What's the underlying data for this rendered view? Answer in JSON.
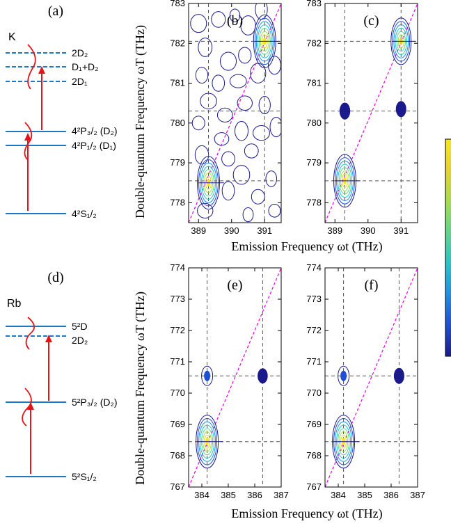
{
  "colors": {
    "level": "#1f77c8",
    "arrow": "#e4141b",
    "diagonal": "#e600e6",
    "guide": "#555555",
    "contour_outer": "#1a1a8c",
    "frame": "#000000"
  },
  "colorbar_colors": [
    "#1a1a8c",
    "#1f4fd6",
    "#1e8fe6",
    "#26c6c6",
    "#5fd68a",
    "#a6dc4a",
    "#e6d22a",
    "#f5e61e"
  ],
  "shared": {
    "ylabel": "Double-quantum Frequency ωT (THz)",
    "xlabel_top": "Emission Frequency ωt (THz)",
    "xlabel_bottom": "Emission Frequency ωt (THz)"
  },
  "diagrams": [
    {
      "panel": "(a)",
      "atom": "K",
      "levels": [
        {
          "label": "2D₂",
          "style": "dashed"
        },
        {
          "label": "D₁+D₂",
          "style": "dashed"
        },
        {
          "label": "2D₁",
          "style": "dashed"
        },
        {
          "label": "4²P₃/₂ (D₂)",
          "style": "solid"
        },
        {
          "label": "4²P₁/₂ (D₁)",
          "style": "solid"
        },
        {
          "label": "4²S₁/₂",
          "style": "solid"
        }
      ]
    },
    {
      "panel": "(d)",
      "atom": "Rb",
      "levels": [
        {
          "label": "5²D",
          "style": "solid"
        },
        {
          "label": "2D₂",
          "style": "dashed"
        },
        {
          "label": "5²P₃/₂ (D₂)",
          "style": "solid"
        },
        {
          "label": "5²S₁/₂",
          "style": "solid"
        }
      ]
    }
  ],
  "chart_data": [
    {
      "panel": "(b)",
      "type": "heatmap",
      "xlim": [
        388.7,
        391.5
      ],
      "ylim": [
        777.5,
        783
      ],
      "xticks": [
        389,
        390,
        391
      ],
      "yticks": [
        778,
        779,
        780,
        781,
        782,
        783
      ],
      "xlines": [
        389.3,
        391
      ],
      "ylines": [
        778.55,
        780.3,
        782.05
      ],
      "diagonal": [
        [
          388.7,
          777.5
        ],
        [
          391.5,
          783
        ]
      ],
      "peaks": [
        {
          "x": 389.3,
          "y": 778.5,
          "intensity": 1.0
        },
        {
          "x": 391.0,
          "y": 782.05,
          "intensity": 1.0
        }
      ],
      "noise_islands": [
        {
          "x": 389.0,
          "y": 782.5
        },
        {
          "x": 389.6,
          "y": 782.6
        },
        {
          "x": 390.1,
          "y": 782.7
        },
        {
          "x": 390.5,
          "y": 782.45
        },
        {
          "x": 390.9,
          "y": 782.85
        },
        {
          "x": 389.2,
          "y": 781.9
        },
        {
          "x": 389.9,
          "y": 781.55
        },
        {
          "x": 390.4,
          "y": 781.7
        },
        {
          "x": 389.1,
          "y": 781.2
        },
        {
          "x": 389.6,
          "y": 781.0
        },
        {
          "x": 390.2,
          "y": 781.05
        },
        {
          "x": 390.8,
          "y": 781.25
        },
        {
          "x": 391.3,
          "y": 781.45
        },
        {
          "x": 389.3,
          "y": 780.55
        },
        {
          "x": 389.8,
          "y": 780.2
        },
        {
          "x": 390.4,
          "y": 780.5
        },
        {
          "x": 391.0,
          "y": 780.45
        },
        {
          "x": 389.0,
          "y": 780.0
        },
        {
          "x": 389.7,
          "y": 779.6
        },
        {
          "x": 390.3,
          "y": 779.8
        },
        {
          "x": 390.9,
          "y": 779.75
        },
        {
          "x": 391.35,
          "y": 779.9
        },
        {
          "x": 389.1,
          "y": 779.2
        },
        {
          "x": 389.9,
          "y": 779.1
        },
        {
          "x": 390.6,
          "y": 779.3
        },
        {
          "x": 390.3,
          "y": 778.7
        },
        {
          "x": 391.2,
          "y": 778.6
        },
        {
          "x": 389.9,
          "y": 778.3
        },
        {
          "x": 390.8,
          "y": 778.15
        },
        {
          "x": 389.2,
          "y": 777.8
        },
        {
          "x": 390.5,
          "y": 777.7
        },
        {
          "x": 391.3,
          "y": 777.8
        }
      ]
    },
    {
      "panel": "(c)",
      "type": "heatmap",
      "xlim": [
        388.7,
        391.5
      ],
      "ylim": [
        777.5,
        783
      ],
      "xticks": [
        389,
        390,
        391
      ],
      "yticks": [
        778,
        779,
        780,
        781,
        782,
        783
      ],
      "xlines": [
        389.3,
        391
      ],
      "ylines": [
        778.55,
        780.3,
        782.05
      ],
      "diagonal": [
        [
          388.7,
          777.5
        ],
        [
          391.5,
          783
        ]
      ],
      "peaks": [
        {
          "x": 389.3,
          "y": 778.55,
          "intensity": 1.0
        },
        {
          "x": 391.0,
          "y": 782.05,
          "intensity": 0.85
        },
        {
          "x": 389.3,
          "y": 780.3,
          "intensity": 0.12
        },
        {
          "x": 391.0,
          "y": 780.35,
          "intensity": 0.1
        }
      ]
    },
    {
      "panel": "(e)",
      "type": "heatmap",
      "xlim": [
        383.5,
        387
      ],
      "ylim": [
        767,
        774
      ],
      "xticks": [
        384,
        385,
        386,
        387
      ],
      "yticks": [
        767,
        768,
        769,
        770,
        771,
        772,
        773,
        774
      ],
      "xlines": [
        384.2,
        386.3
      ],
      "ylines": [
        768.45,
        770.55
      ],
      "diagonal": [
        [
          383.5,
          767
        ],
        [
          387,
          774
        ]
      ],
      "peaks": [
        {
          "x": 384.2,
          "y": 768.45,
          "intensity": 1.0
        },
        {
          "x": 384.2,
          "y": 770.55,
          "intensity": 0.2
        },
        {
          "x": 386.3,
          "y": 770.55,
          "intensity": 0.08
        }
      ]
    },
    {
      "panel": "(f)",
      "type": "heatmap",
      "xlim": [
        383.5,
        387
      ],
      "ylim": [
        767,
        774
      ],
      "xticks": [
        384,
        385,
        386,
        387
      ],
      "yticks": [
        767,
        768,
        769,
        770,
        771,
        772,
        773,
        774
      ],
      "xlines": [
        384.2,
        386.3
      ],
      "ylines": [
        768.45,
        770.55
      ],
      "diagonal": [
        [
          383.5,
          767
        ],
        [
          387,
          774
        ]
      ],
      "peaks": [
        {
          "x": 384.2,
          "y": 768.45,
          "intensity": 1.0
        },
        {
          "x": 384.2,
          "y": 770.55,
          "intensity": 0.2
        },
        {
          "x": 386.3,
          "y": 770.55,
          "intensity": 0.1
        }
      ]
    }
  ]
}
